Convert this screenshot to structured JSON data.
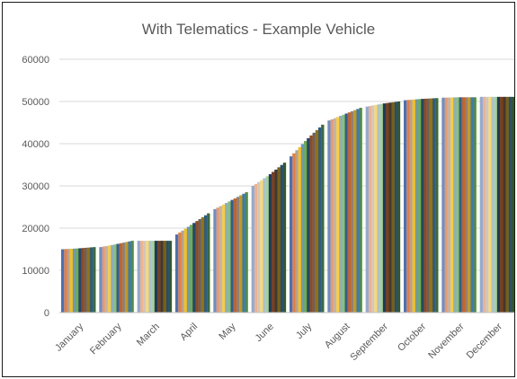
{
  "chart_data": {
    "type": "bar",
    "title": "With Telematics - Example Vehicle",
    "xlabel": "",
    "ylabel": "",
    "ylim": [
      0,
      60000
    ],
    "yticks": [
      0,
      10000,
      20000,
      30000,
      40000,
      50000,
      60000
    ],
    "grid": true,
    "legend": "none",
    "categories": [
      "January",
      "February",
      "March",
      "April",
      "May",
      "June",
      "July",
      "August",
      "September",
      "October",
      "November",
      "December"
    ],
    "month_curve": [
      [
        15000,
        15200,
        15500
      ],
      [
        15500,
        16200,
        17000
      ],
      [
        17000,
        17000,
        17000
      ],
      [
        18500,
        21000,
        23500
      ],
      [
        24500,
        26500,
        28500
      ],
      [
        30000,
        32500,
        35500
      ],
      [
        37000,
        41000,
        44500
      ],
      [
        45500,
        47000,
        48500
      ],
      [
        48800,
        49500,
        50000
      ],
      [
        50300,
        50600,
        50800
      ],
      [
        50900,
        51000,
        51000
      ],
      [
        51100,
        51100,
        51100
      ]
    ],
    "bar_colors": [
      "#4472c4",
      "#ed7d31",
      "#a5a5a5",
      "#ffc000",
      "#5b9bd5",
      "#70ad47",
      "#264478",
      "#9e480e",
      "#636363",
      "#997300",
      "#255e91",
      "#43682b",
      "#698ed0",
      "#f1975a",
      "#b7b7b7",
      "#ffcd33",
      "#7cafdd",
      "#8cc168",
      "#335aa1",
      "#d26012",
      "#848484",
      "#cc9a00",
      "#327dc2",
      "#5a8a39",
      "#8faadc",
      "#f4b183",
      "#c9c9c9",
      "#ffd966",
      "#9dc3e6",
      "#a9d18e",
      "#203864",
      "#843c0c",
      "#3a3a3a",
      "#7f6000",
      "#1f4e79",
      "#385723"
    ]
  }
}
